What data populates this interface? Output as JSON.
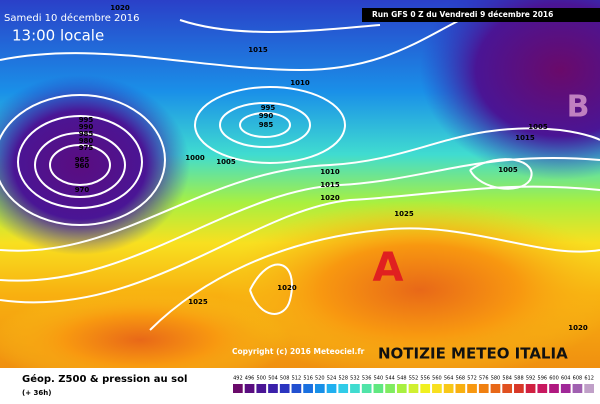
{
  "header": {
    "date": "Samedi 10 décembre 2016",
    "time": "13:00 locale",
    "run": "Run GFS 0 Z du Vendredi 9 décembre 2016"
  },
  "isobar_labels": [
    "1020",
    "1015",
    "1015",
    "1010",
    "995",
    "990",
    "985",
    "995",
    "990",
    "985",
    "980",
    "975",
    "965",
    "960",
    "970",
    "1000",
    "1005",
    "1010",
    "1015",
    "1020",
    "1025",
    "1005",
    "1005",
    "1025",
    "1020",
    "1020"
  ],
  "high": "A",
  "low": "B",
  "copyright": "Copyright (c) 2016 Meteociel.fr",
  "watermark": "NOTIZIE METEO ITALIA",
  "legend": {
    "title": "Géop. Z500 & pression au sol",
    "lead": "(+ 36h)",
    "labels": [
      492,
      496,
      500,
      504,
      508,
      512,
      516,
      520,
      524,
      528,
      532,
      536,
      540,
      544,
      548,
      552,
      556,
      560,
      564,
      568,
      572,
      576,
      580,
      584,
      588,
      592,
      596,
      600,
      604,
      608,
      612
    ],
    "colors": [
      "#6a0a6a",
      "#5a0d80",
      "#4a1595",
      "#3a20aa",
      "#2b35c0",
      "#2250d0",
      "#1a70e0",
      "#1890e8",
      "#20b0f0",
      "#30cce8",
      "#40dcd0",
      "#50e4a8",
      "#60e880",
      "#80ec60",
      "#a8f040",
      "#d0f030",
      "#f0f020",
      "#f8e020",
      "#f8c818",
      "#f8b010",
      "#f89810",
      "#f08010",
      "#e86818",
      "#e05020",
      "#d83828",
      "#d02040",
      "#c81860",
      "#b01880",
      "#a02898",
      "#a060b0",
      "#c0a0c8"
    ]
  }
}
